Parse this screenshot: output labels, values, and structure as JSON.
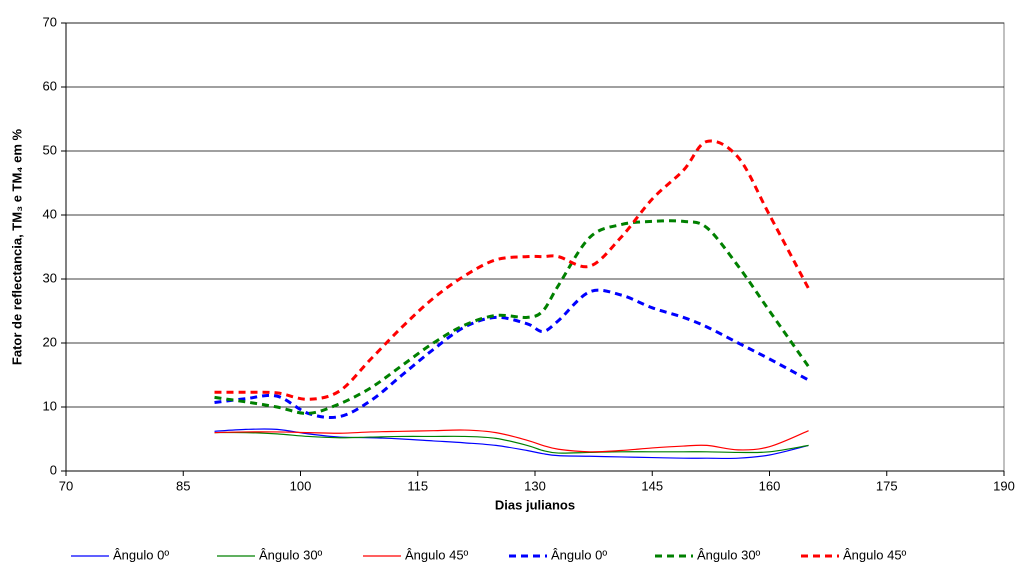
{
  "chart_data": {
    "type": "line",
    "xlabel": "Dias julianos",
    "ylabel": "Fator de reflectancia, TM₃ e TM₄ em %",
    "x": [
      89,
      93,
      97,
      101,
      105,
      109,
      113,
      117,
      121,
      125,
      129,
      131,
      133,
      137,
      141,
      145,
      149,
      152,
      156,
      160,
      165
    ],
    "series": [
      {
        "name": "Ângulo 0º",
        "color": "#0000ff",
        "dashed": false,
        "values": [
          6.2,
          6.5,
          6.5,
          5.8,
          5.3,
          5.2,
          5.0,
          4.7,
          4.4,
          4.0,
          3.2,
          2.7,
          2.4,
          2.3,
          2.2,
          2.1,
          2.0,
          2.0,
          2.0,
          2.5,
          4.0
        ]
      },
      {
        "name": "Ângulo 30º",
        "color": "#008000",
        "dashed": false,
        "values": [
          6.0,
          6.0,
          5.8,
          5.4,
          5.2,
          5.3,
          5.4,
          5.4,
          5.4,
          5.1,
          4.0,
          3.2,
          2.8,
          2.9,
          3.0,
          3.0,
          3.0,
          3.0,
          2.9,
          3.0,
          4.0
        ]
      },
      {
        "name": "Ângulo 45º",
        "color": "#ff0000",
        "dashed": false,
        "values": [
          6.0,
          6.1,
          6.1,
          6.0,
          5.9,
          6.1,
          6.2,
          6.3,
          6.4,
          6.0,
          4.8,
          4.0,
          3.4,
          3.0,
          3.2,
          3.6,
          3.9,
          4.0,
          3.3,
          3.8,
          6.3
        ]
      },
      {
        "name": "Ângulo 0º",
        "color": "#0000ff",
        "dashed": true,
        "values": [
          10.7,
          11.3,
          11.7,
          9.0,
          8.5,
          11.0,
          15.0,
          19.0,
          22.5,
          24.0,
          23.0,
          21.8,
          23.5,
          28.0,
          27.5,
          25.5,
          24.0,
          22.5,
          20.0,
          17.5,
          14.2
        ]
      },
      {
        "name": "Ângulo 30º",
        "color": "#008000",
        "dashed": true,
        "values": [
          11.5,
          10.8,
          10.0,
          9.0,
          10.5,
          13.0,
          16.5,
          20.0,
          22.8,
          24.3,
          24.0,
          25.0,
          29.0,
          36.5,
          38.5,
          39.0,
          39.0,
          38.0,
          32.0,
          25.0,
          16.3
        ]
      },
      {
        "name": "Ângulo 45º",
        "color": "#ff0000",
        "dashed": true,
        "values": [
          12.3,
          12.3,
          12.2,
          11.2,
          12.5,
          17.5,
          22.5,
          27.0,
          30.5,
          33.0,
          33.5,
          33.5,
          33.5,
          32.0,
          36.5,
          42.5,
          47.0,
          51.5,
          49.0,
          40.0,
          28.5
        ]
      }
    ],
    "xlim": [
      70,
      190
    ],
    "xticks": [
      70,
      85,
      100,
      115,
      130,
      145,
      160,
      175,
      190
    ],
    "ylim": [
      0,
      70
    ],
    "yticks": [
      0,
      10,
      20,
      30,
      40,
      50,
      60,
      70
    ],
    "grid": true,
    "legend": "bottom"
  }
}
